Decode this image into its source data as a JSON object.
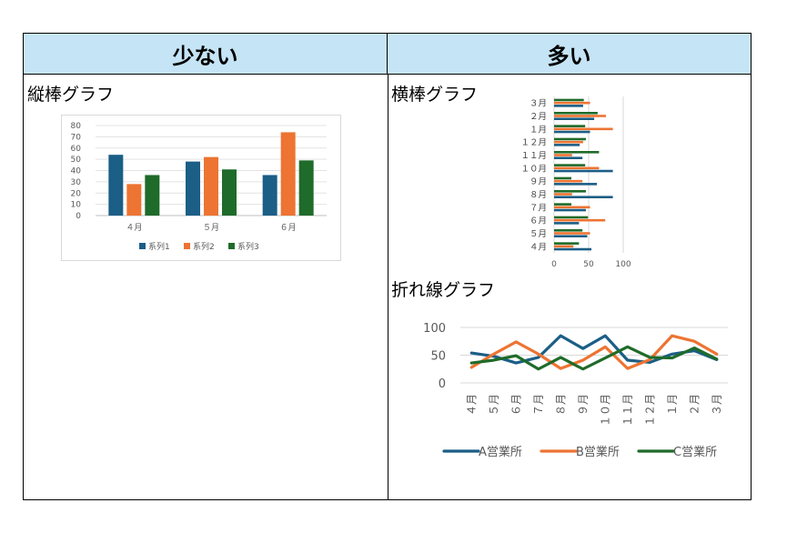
{
  "table": {
    "header_left": "少ない",
    "header_right": "多い"
  },
  "labels": {
    "vertical_bar": "縦棒グラフ",
    "horizontal_bar": "横棒グラフ",
    "line": "折れ線グラフ"
  },
  "colors": {
    "series1": "#1b5e86",
    "series2": "#ed7432",
    "series3": "#1f6b2a",
    "header_bg": "#c5e4f5"
  },
  "chart_data": [
    {
      "type": "bar",
      "categories": [
        "４月",
        "５月",
        "６月"
      ],
      "series": [
        {
          "name": "系列1",
          "values": [
            54,
            48,
            36
          ]
        },
        {
          "name": "系列2",
          "values": [
            28,
            52,
            74
          ]
        },
        {
          "name": "系列3",
          "values": [
            36,
            41,
            49
          ]
        }
      ],
      "yticks": [
        "0",
        "10",
        "20",
        "30",
        "40",
        "50",
        "60",
        "70",
        "80"
      ],
      "ylim": [
        0,
        80
      ],
      "grid": true,
      "legend": "bottom"
    },
    {
      "type": "bar",
      "orientation": "horizontal",
      "categories": [
        "４月",
        "５月",
        "６月",
        "７月",
        "８月",
        "９月",
        "１０月",
        "１１月",
        "１２月",
        "１月",
        "２月",
        "３月"
      ],
      "series": [
        {
          "name": "A営業所",
          "values": [
            54,
            48,
            36,
            46,
            85,
            62,
            85,
            41,
            37,
            52,
            58,
            42
          ]
        },
        {
          "name": "B営業所",
          "values": [
            28,
            52,
            74,
            52,
            26,
            41,
            65,
            26,
            42,
            85,
            75,
            52
          ]
        },
        {
          "name": "C営業所",
          "values": [
            36,
            41,
            49,
            25,
            46,
            25,
            45,
            65,
            46,
            45,
            63,
            43
          ]
        }
      ],
      "xticks": [
        "0",
        "50",
        "100"
      ],
      "xlim": [
        0,
        100
      ],
      "grid": true
    },
    {
      "type": "line",
      "categories": [
        "４月",
        "５月",
        "６月",
        "７月",
        "８月",
        "９月",
        "１０月",
        "１１月",
        "１２月",
        "１月",
        "２月",
        "３月"
      ],
      "series": [
        {
          "name": "A営業所",
          "values": [
            54,
            48,
            36,
            46,
            85,
            62,
            85,
            41,
            37,
            52,
            58,
            42
          ]
        },
        {
          "name": "B営業所",
          "values": [
            28,
            52,
            74,
            52,
            26,
            41,
            65,
            26,
            42,
            85,
            75,
            52
          ]
        },
        {
          "name": "C営業所",
          "values": [
            36,
            41,
            49,
            25,
            46,
            25,
            45,
            65,
            46,
            45,
            63,
            43
          ]
        }
      ],
      "yticks": [
        "0",
        "50",
        "100"
      ],
      "ylim": [
        0,
        100
      ],
      "grid": true,
      "legend": "bottom"
    }
  ]
}
